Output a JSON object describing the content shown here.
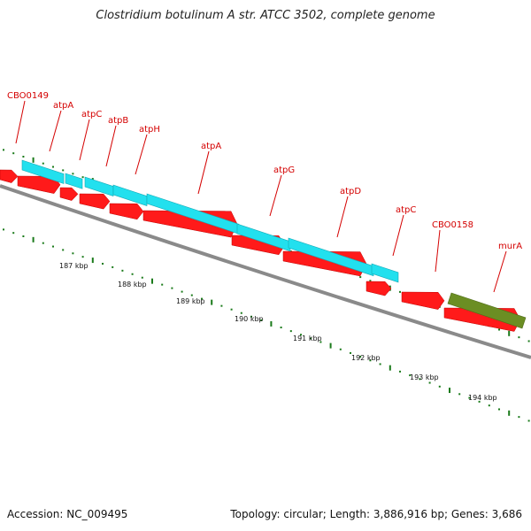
{
  "title": "Clostridium botulinum A str. ATCC 3502, complete genome",
  "accession": "Accession: NC_009495",
  "summary": "Topology: circular; Length: 3,886,916 bp; Genes: 3,686",
  "colors": {
    "cds": "#ff1a1a",
    "operon": "#22e0ee",
    "gene_green": "#6b8e23",
    "label": "#d40000",
    "tick": "#1a7a1a",
    "backbone": "#888888"
  },
  "gene_labels": [
    "CBO0149",
    "atpA",
    "atpC",
    "atpB",
    "atpH",
    "atpA",
    "atpG",
    "atpD",
    "atpC",
    "CBO0158",
    "murA"
  ],
  "kbp_labels": [
    "187 kbp",
    "188 kbp",
    "189 kbp",
    "190 kbp",
    "191 kbp",
    "192 kbp",
    "193 kbp",
    "194 kbp"
  ]
}
